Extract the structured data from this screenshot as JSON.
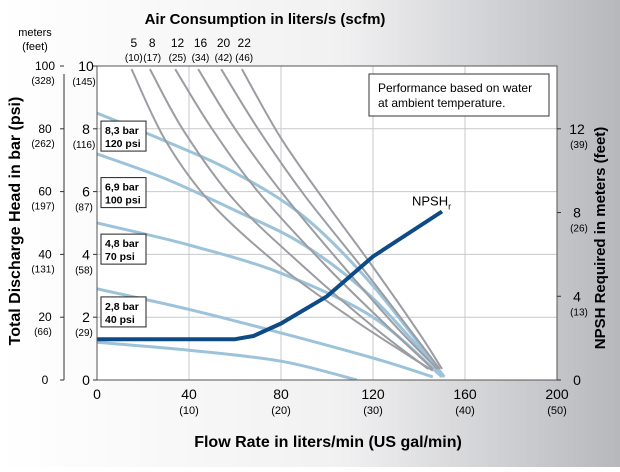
{
  "chart_data": {
    "type": "line",
    "title": "Air Consumption in liters/s (scfm)",
    "xlabel": "Flow Rate in liters/min (US gal/min)",
    "ylabel_left": "Total Discharge Head in bar (psi)",
    "ylabel_right": "NPSH Required in meters (feet)",
    "left_unit_header": [
      "meters",
      "(feet)"
    ],
    "note": [
      "Performance based on water",
      "at ambient temperature."
    ],
    "xlim": [
      0,
      200
    ],
    "ylim": [
      0,
      10
    ],
    "ylim_right": [
      0,
      15
    ],
    "grid": true,
    "x_ticks": [
      {
        "value": 0,
        "label": "0",
        "sub": ""
      },
      {
        "value": 40,
        "label": "40",
        "sub": "(10)"
      },
      {
        "value": 80,
        "label": "80",
        "sub": "(20)"
      },
      {
        "value": 120,
        "label": "120",
        "sub": "(30)"
      },
      {
        "value": 160,
        "label": "160",
        "sub": "(40)"
      },
      {
        "value": 200,
        "label": "200",
        "sub": "(50)"
      }
    ],
    "y_ticks_bar": [
      {
        "value": 0,
        "label": "0",
        "sub": ""
      },
      {
        "value": 2,
        "label": "2",
        "sub": "(29)"
      },
      {
        "value": 4,
        "label": "4",
        "sub": "(58)"
      },
      {
        "value": 6,
        "label": "6",
        "sub": "(87)"
      },
      {
        "value": 8,
        "label": "8",
        "sub": "(116)"
      },
      {
        "value": 10,
        "label": "10",
        "sub": "(145)"
      }
    ],
    "y_ticks_meters": [
      {
        "value": 0,
        "label": "0",
        "sub": ""
      },
      {
        "value": 20,
        "label": "20",
        "sub": "(66)"
      },
      {
        "value": 40,
        "label": "40",
        "sub": "(131)"
      },
      {
        "value": 60,
        "label": "60",
        "sub": "(197)"
      },
      {
        "value": 80,
        "label": "80",
        "sub": "(262)"
      },
      {
        "value": 100,
        "label": "100",
        "sub": "(328)"
      }
    ],
    "y_ticks_right": [
      {
        "value": 0,
        "label": "0",
        "sub": ""
      },
      {
        "value": 4,
        "label": "4",
        "sub": "(13)"
      },
      {
        "value": 8,
        "label": "8",
        "sub": "(26)"
      },
      {
        "value": 12,
        "label": "12",
        "sub": "(39)"
      }
    ],
    "air_labels": [
      {
        "label": "5",
        "sub": "(10)",
        "x": 16
      },
      {
        "label": "8",
        "sub": "(17)",
        "x": 24
      },
      {
        "label": "12",
        "sub": "(25)",
        "x": 35
      },
      {
        "label": "16",
        "sub": "(34)",
        "x": 45
      },
      {
        "label": "20",
        "sub": "(42)",
        "x": 55
      },
      {
        "label": "22",
        "sub": "(46)",
        "x": 64
      }
    ],
    "air_curves": [
      {
        "name": "5 (10)",
        "points": [
          [
            15,
            9.9
          ],
          [
            30,
            7.6
          ],
          [
            50,
            5.6
          ],
          [
            80,
            3.6
          ],
          [
            110,
            2.0
          ],
          [
            135,
            0.8
          ],
          [
            146,
            0.3
          ]
        ]
      },
      {
        "name": "8 (17)",
        "points": [
          [
            23,
            9.9
          ],
          [
            38,
            7.9
          ],
          [
            60,
            5.7
          ],
          [
            90,
            3.6
          ],
          [
            120,
            1.7
          ],
          [
            144,
            0.35
          ]
        ]
      },
      {
        "name": "12 (25)",
        "points": [
          [
            34,
            9.9
          ],
          [
            50,
            8.0
          ],
          [
            70,
            6.0
          ],
          [
            100,
            3.6
          ],
          [
            125,
            1.8
          ],
          [
            146,
            0.35
          ]
        ]
      },
      {
        "name": "16 (34)",
        "points": [
          [
            44,
            9.9
          ],
          [
            60,
            8.0
          ],
          [
            80,
            6.0
          ],
          [
            105,
            3.8
          ],
          [
            130,
            1.7
          ],
          [
            148,
            0.35
          ]
        ]
      },
      {
        "name": "20 (42)",
        "points": [
          [
            54,
            9.9
          ],
          [
            70,
            8.0
          ],
          [
            90,
            5.9
          ],
          [
            115,
            3.6
          ],
          [
            135,
            1.7
          ],
          [
            149,
            0.35
          ]
        ]
      },
      {
        "name": "22 (46)",
        "points": [
          [
            63,
            9.9
          ],
          [
            80,
            7.7
          ],
          [
            100,
            5.6
          ],
          [
            120,
            3.6
          ],
          [
            140,
            1.5
          ],
          [
            150,
            0.35
          ]
        ]
      }
    ],
    "pressure_curves": [
      {
        "name": "8,3 bar 120 psi",
        "points": [
          [
            0,
            8.5
          ],
          [
            30,
            7.6
          ],
          [
            60,
            6.6
          ],
          [
            90,
            5.2
          ],
          [
            120,
            3.0
          ],
          [
            151,
            0.1
          ]
        ]
      },
      {
        "name": "6,9 bar 100 psi",
        "points": [
          [
            0,
            7.2
          ],
          [
            30,
            6.4
          ],
          [
            60,
            5.4
          ],
          [
            90,
            4.3
          ],
          [
            120,
            2.6
          ],
          [
            151,
            0.1
          ]
        ]
      },
      {
        "name": "4,8 bar 70 psi",
        "points": [
          [
            0,
            5.0
          ],
          [
            40,
            4.3
          ],
          [
            80,
            3.4
          ],
          [
            120,
            2.0
          ],
          [
            150,
            0.1
          ]
        ]
      },
      {
        "name": "2,8 bar 40 psi",
        "points": [
          [
            0,
            2.9
          ],
          [
            40,
            2.25
          ],
          [
            80,
            1.5
          ],
          [
            120,
            0.7
          ],
          [
            146,
            0.1
          ]
        ]
      },
      {
        "name": "low",
        "points": [
          [
            0,
            1.2
          ],
          [
            40,
            0.95
          ],
          [
            80,
            0.6
          ],
          [
            113,
            0.0
          ]
        ]
      }
    ],
    "pressure_labels": [
      {
        "line1": "8,3 bar",
        "line2": "120 psi",
        "y": 7.8
      },
      {
        "line1": "6,9 bar",
        "line2": "100 psi",
        "y": 6.0
      },
      {
        "line1": "4,8 bar",
        "line2": "70 psi",
        "y": 4.2
      },
      {
        "line1": "2,8 bar",
        "line2": "40 psi",
        "y": 2.2
      }
    ],
    "npsh_curve": {
      "name": "NPSHr",
      "label_main": "NPSH",
      "label_sub": "r",
      "points": [
        [
          0,
          1.95
        ],
        [
          60,
          1.95
        ],
        [
          68,
          2.1
        ],
        [
          80,
          2.7
        ],
        [
          100,
          4.0
        ],
        [
          120,
          5.9
        ],
        [
          150,
          8.05
        ]
      ]
    },
    "colors": {
      "air": "#9b9da3",
      "pressure": "#9cc3d9",
      "npsh": "#0e4a86",
      "grid": "#c8c9cc",
      "text": "#000000"
    }
  }
}
